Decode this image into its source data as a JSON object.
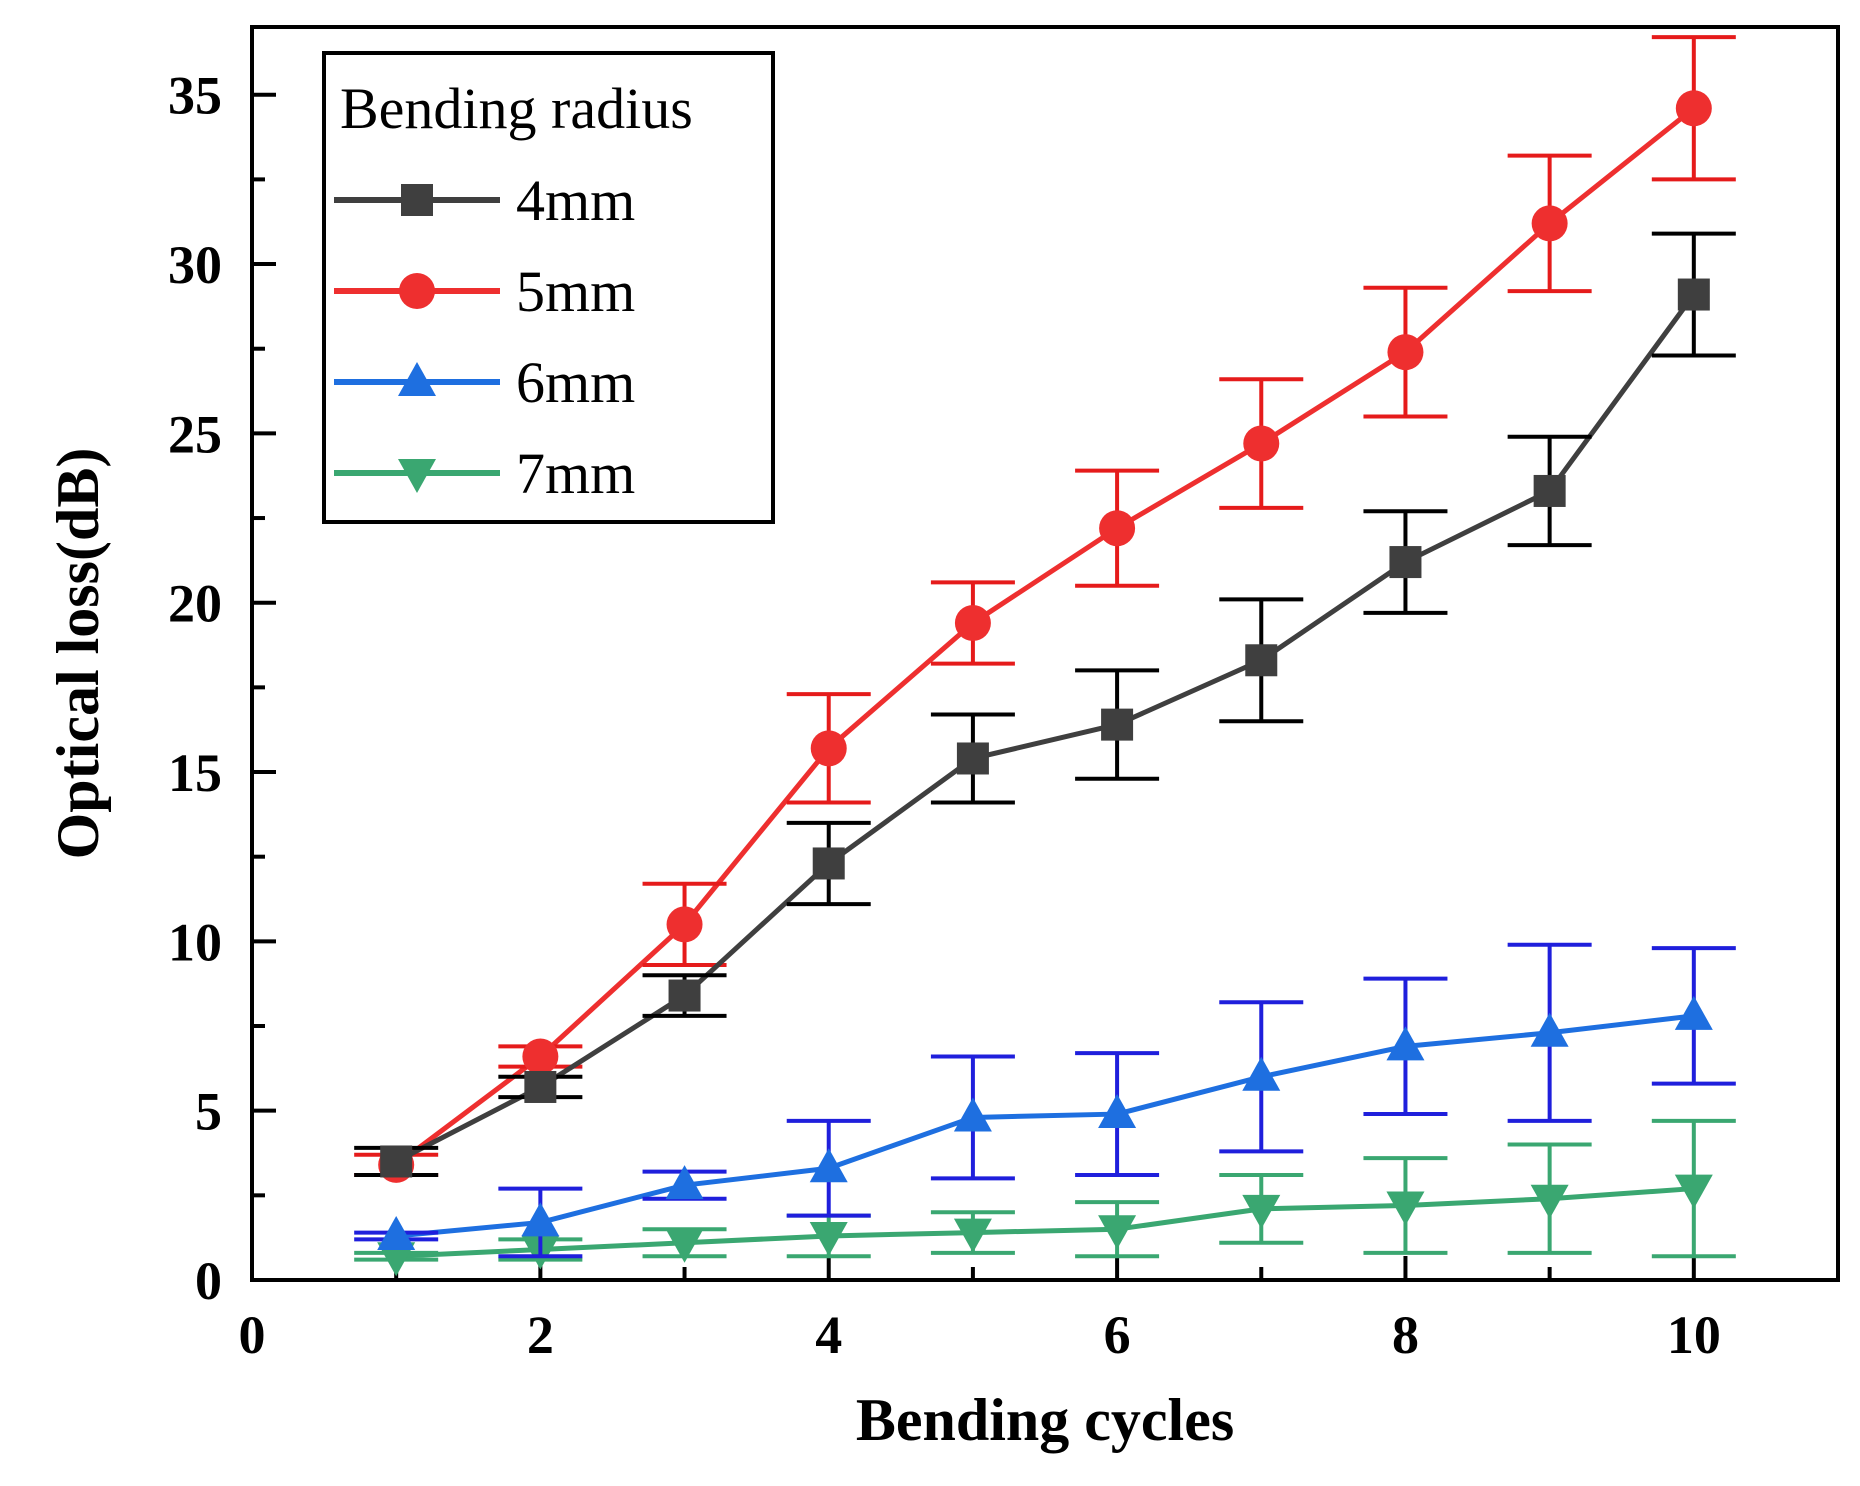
{
  "chart_data": {
    "type": "line",
    "title": "",
    "xlabel": "Bending cycles",
    "ylabel": "Optical loss(dB)",
    "xlim": [
      0,
      11
    ],
    "ylim": [
      0,
      37
    ],
    "x_ticks": [
      "0",
      "2",
      "4",
      "6",
      "8",
      "10"
    ],
    "x_tick_values": [
      0,
      2,
      4,
      6,
      8,
      10
    ],
    "y_ticks": [
      "0",
      "5",
      "10",
      "15",
      "20",
      "25",
      "30",
      "35"
    ],
    "y_tick_values": [
      0,
      5,
      10,
      15,
      20,
      25,
      30,
      35
    ],
    "legend_title": "Bending radius",
    "legend_position": "top-left",
    "grid": false,
    "x": [
      1,
      2,
      3,
      4,
      5,
      6,
      7,
      8,
      9,
      10
    ],
    "series": [
      {
        "name": "4mm",
        "color": "#3f3f3f",
        "error_color": "#000000",
        "marker": "square",
        "values": [
          3.5,
          5.7,
          8.4,
          12.3,
          15.4,
          16.4,
          18.3,
          21.2,
          23.3,
          29.1
        ],
        "errors": [
          0.4,
          0.3,
          0.6,
          1.2,
          1.3,
          1.6,
          1.8,
          1.5,
          1.6,
          1.8
        ]
      },
      {
        "name": "5mm",
        "color": "#ee2f2f",
        "error_color": "#e51b1b",
        "marker": "circle",
        "values": [
          3.4,
          6.6,
          10.5,
          15.7,
          19.4,
          22.2,
          24.7,
          27.4,
          31.2,
          34.6
        ],
        "errors": [
          0.3,
          0.3,
          1.2,
          1.6,
          1.2,
          1.7,
          1.9,
          1.9,
          2.0,
          2.1
        ]
      },
      {
        "name": "6mm",
        "color": "#1e6fe0",
        "error_color": "#1f1fdc",
        "marker": "triangle-up",
        "values": [
          1.3,
          1.7,
          2.8,
          3.3,
          4.8,
          4.9,
          6.0,
          6.9,
          7.3,
          7.8
        ],
        "errors": [
          0.1,
          1.0,
          0.4,
          1.4,
          1.8,
          1.8,
          2.2,
          2.0,
          2.6,
          2.0
        ]
      },
      {
        "name": "7mm",
        "color": "#3aa771",
        "error_color": "#3aa771",
        "marker": "triangle-down",
        "values": [
          0.7,
          0.9,
          1.1,
          1.3,
          1.4,
          1.5,
          2.1,
          2.2,
          2.4,
          2.7
        ],
        "errors": [
          0.1,
          0.3,
          0.4,
          0.6,
          0.6,
          0.8,
          1.0,
          1.4,
          1.6,
          2.0
        ]
      }
    ]
  }
}
